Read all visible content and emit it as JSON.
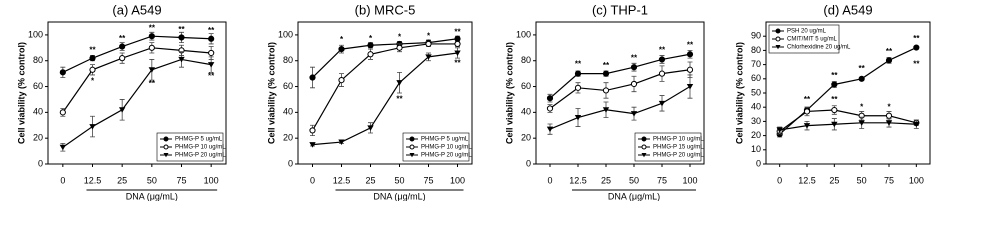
{
  "chart_data": [
    {
      "type": "line",
      "title": "(a) A549",
      "y_label": "Cell viability (% control)",
      "x_label": "DNA (μg/mL)",
      "categories": [
        "0",
        "12.5",
        "25",
        "50",
        "75",
        "100"
      ],
      "ylim": [
        0,
        110
      ],
      "yticks": [
        0,
        20,
        40,
        60,
        80,
        100
      ],
      "legend": "lower right",
      "series": [
        {
          "name": "PHMG-P 5 ug/mL",
          "color": "#000000",
          "marker": "filled-circle",
          "values": [
            71,
            82,
            91,
            99,
            98,
            97
          ],
          "errors": [
            4,
            2,
            3,
            3,
            4,
            4
          ]
        },
        {
          "name": "PHMG-P 10 ug/mL",
          "color": "#000000",
          "marker": "open-circle",
          "values": [
            40,
            73,
            82,
            90,
            88,
            86
          ],
          "errors": [
            3,
            4,
            4,
            4,
            4,
            5
          ]
        },
        {
          "name": "PHMG-P 20 ug/mL",
          "color": "#000000",
          "marker": "filled-triangle",
          "values": [
            13,
            29,
            42,
            73,
            81,
            77
          ],
          "errors": [
            3,
            8,
            8,
            8,
            6,
            6
          ]
        }
      ],
      "annotations": [
        {
          "text": "**",
          "x": "12.5",
          "y": 88
        },
        {
          "text": "**",
          "x": "25",
          "y": 97
        },
        {
          "text": "**",
          "x": "50",
          "y": 105
        },
        {
          "text": "**",
          "x": "75",
          "y": 104
        },
        {
          "text": "**",
          "x": "100",
          "y": 103
        },
        {
          "text": "*",
          "x": "12.5",
          "y": 64
        },
        {
          "text": "**",
          "x": "50",
          "y": 62
        },
        {
          "text": "**",
          "x": "100",
          "y": 68
        }
      ]
    },
    {
      "type": "line",
      "title": "(b) MRC-5",
      "y_label": "Cell viability (% control)",
      "x_label": "DNA (μg/mL)",
      "categories": [
        "0",
        "12.5",
        "25",
        "50",
        "75",
        "100"
      ],
      "ylim": [
        0,
        110
      ],
      "yticks": [
        0,
        20,
        40,
        60,
        80,
        100
      ],
      "legend": "lower right",
      "series": [
        {
          "name": "PHMG-P 5 ug/mL",
          "color": "#000000",
          "marker": "filled-circle",
          "values": [
            67,
            89,
            92,
            93,
            94,
            97
          ],
          "errors": [
            8,
            3,
            2,
            2,
            2,
            2
          ]
        },
        {
          "name": "PHMG-P 10 ug/mL",
          "color": "#000000",
          "marker": "open-circle",
          "values": [
            26,
            65,
            85,
            90,
            93,
            93
          ],
          "errors": [
            4,
            5,
            4,
            3,
            2,
            2
          ]
        },
        {
          "name": "PHMG-P 20 ug/mL",
          "color": "#000000",
          "marker": "filled-triangle",
          "values": [
            15,
            17,
            28,
            63,
            83,
            86
          ],
          "errors": [
            1,
            1,
            4,
            8,
            3,
            4
          ]
        }
      ],
      "annotations": [
        {
          "text": "*",
          "x": "12.5",
          "y": 96
        },
        {
          "text": "*",
          "x": "25",
          "y": 97
        },
        {
          "text": "*",
          "x": "50",
          "y": 98
        },
        {
          "text": "*",
          "x": "75",
          "y": 99
        },
        {
          "text": "**",
          "x": "100",
          "y": 102
        },
        {
          "text": "**",
          "x": "50",
          "y": 50
        },
        {
          "text": "**",
          "x": "100",
          "y": 78
        }
      ]
    },
    {
      "type": "line",
      "title": "(c) THP-1",
      "y_label": "Cell viability (% control)",
      "x_label": "DNA (μg/mL)",
      "categories": [
        "0",
        "12.5",
        "25",
        "50",
        "75",
        "100"
      ],
      "ylim": [
        0,
        110
      ],
      "yticks": [
        0,
        20,
        40,
        60,
        80,
        100
      ],
      "legend": "lower right",
      "series": [
        {
          "name": "PHMG-P 10 ug/mL",
          "color": "#000000",
          "marker": "filled-circle",
          "values": [
            51,
            70,
            70,
            75,
            81,
            85
          ],
          "errors": [
            3,
            2,
            2,
            3,
            3,
            3
          ]
        },
        {
          "name": "PHMG-P 15 ug/mL",
          "color": "#000000",
          "marker": "open-circle",
          "values": [
            43,
            59,
            57,
            62,
            70,
            73
          ],
          "errors": [
            3,
            4,
            6,
            6,
            6,
            6
          ]
        },
        {
          "name": "PHMG-P 20 ug/mL",
          "color": "#000000",
          "marker": "filled-triangle",
          "values": [
            27,
            36,
            42,
            39,
            47,
            60
          ],
          "errors": [
            4,
            7,
            6,
            5,
            6,
            9
          ]
        }
      ],
      "annotations": [
        {
          "text": "**",
          "x": "12.5",
          "y": 77
        },
        {
          "text": "**",
          "x": "25",
          "y": 76
        },
        {
          "text": "**",
          "x": "50",
          "y": 82
        },
        {
          "text": "**",
          "x": "75",
          "y": 88
        },
        {
          "text": "**",
          "x": "100",
          "y": 92
        }
      ]
    },
    {
      "type": "line",
      "title": "(d) A549",
      "y_label": "Cell viability (% control)",
      "categories": [
        "0",
        "12.5",
        "25",
        "50",
        "75",
        "100"
      ],
      "ylim": [
        0,
        100
      ],
      "yticks": [
        0,
        10,
        20,
        30,
        40,
        50,
        60,
        70,
        80,
        90
      ],
      "legend": "upper left",
      "series": [
        {
          "name": "PSH 20 ug/mL",
          "color": "#000000",
          "marker": "filled-circle",
          "values": [
            21,
            38,
            56,
            60,
            73,
            82
          ],
          "errors": [
            2,
            2,
            2,
            1,
            2,
            1
          ]
        },
        {
          "name": "CMIT/MIT 5 ug/mL",
          "color": "#000000",
          "marker": "open-circle",
          "values": [
            23,
            37,
            38,
            34,
            34,
            29
          ],
          "errors": [
            2,
            3,
            3,
            3,
            3,
            2
          ]
        },
        {
          "name": "Chlorhexidine 20 ug/mL",
          "color": "#000000",
          "marker": "filled-triangle",
          "values": [
            24,
            27,
            28,
            29,
            29,
            28
          ],
          "errors": [
            2,
            3,
            4,
            4,
            3,
            3
          ]
        }
      ],
      "annotations": [
        {
          "text": "**",
          "x": "12.5",
          "y": 45
        },
        {
          "text": "**",
          "x": "25",
          "y": 62
        },
        {
          "text": "**",
          "x": "50",
          "y": 67
        },
        {
          "text": "**",
          "x": "75",
          "y": 79
        },
        {
          "text": "**",
          "x": "100",
          "y": 88
        },
        {
          "text": "**",
          "x": "25",
          "y": 45
        },
        {
          "text": "*",
          "x": "50",
          "y": 40
        },
        {
          "text": "*",
          "x": "75",
          "y": 40
        },
        {
          "text": "**",
          "x": "100",
          "y": 70
        }
      ]
    }
  ]
}
